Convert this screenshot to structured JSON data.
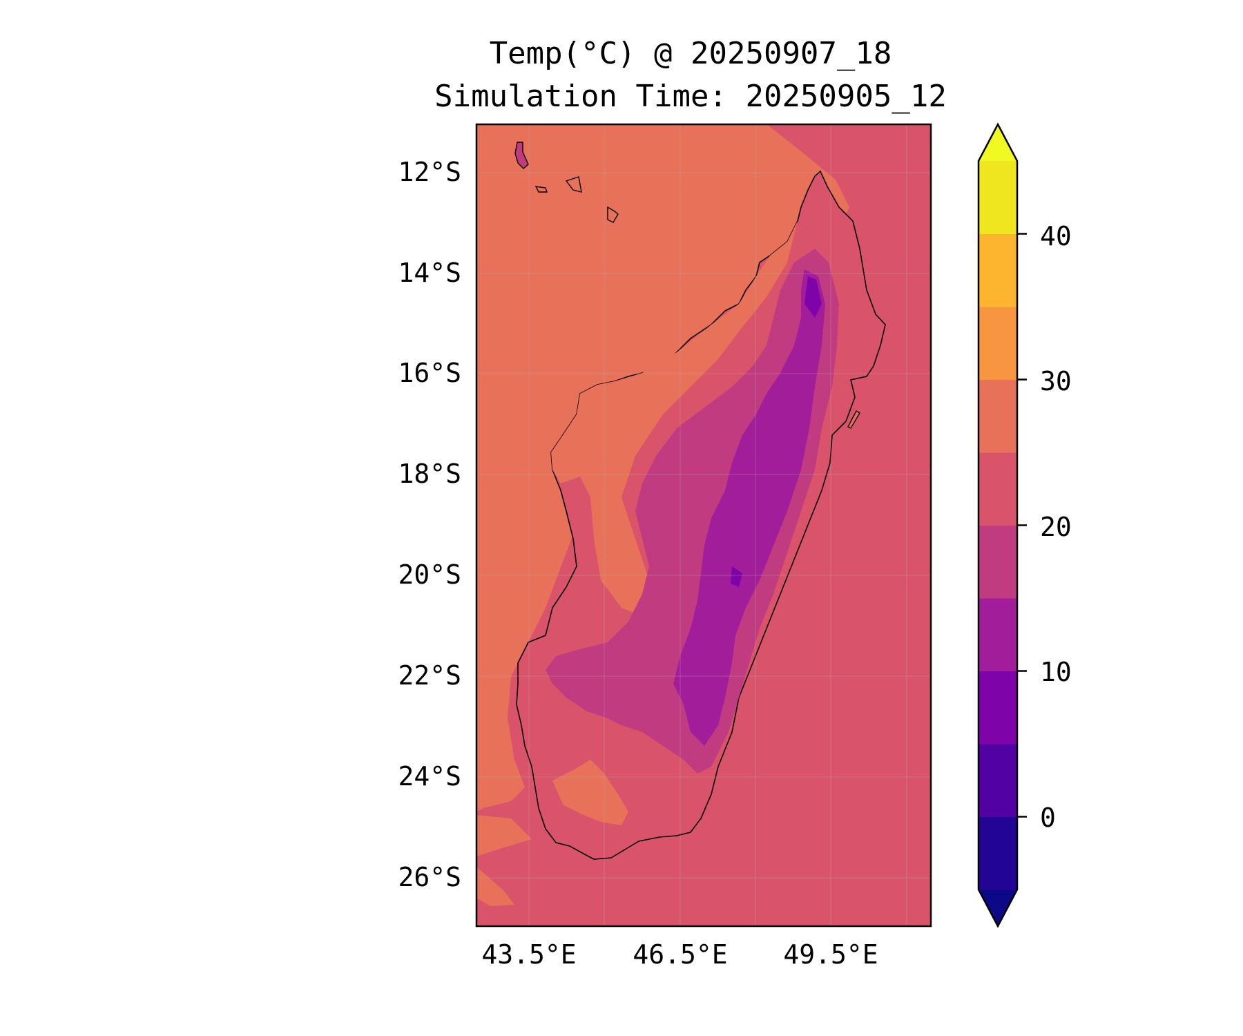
{
  "title": {
    "line1": "Temp(°C) @ 20250907_18",
    "line2": "Simulation Time: 20250905_12"
  },
  "map": {
    "region": "Madagascar",
    "lon_range": [
      42.5,
      51.5
    ],
    "lat_range": [
      -27,
      -11
    ],
    "x_ticks": [
      "43.5°E",
      "46.5°E",
      "49.5°E"
    ],
    "y_ticks": [
      "12°S",
      "14°S",
      "16°S",
      "18°S",
      "20°S",
      "22°S",
      "24°S",
      "26°S"
    ],
    "gridlines": true,
    "ocean_color": "#d9546a",
    "warm_sea_color": "#e8715a"
  },
  "colorbar": {
    "ticks": [
      "0",
      "10",
      "20",
      "30",
      "40"
    ],
    "extend": "both",
    "levels": [
      -5,
      0,
      5,
      10,
      15,
      20,
      25,
      30,
      35,
      40,
      45
    ],
    "colors": [
      "#0d0887",
      "#220595",
      "#5201a3",
      "#7e03a8",
      "#a21d9a",
      "#c03b80",
      "#d9546a",
      "#e8715a",
      "#f89540",
      "#fdb42f",
      "#f0e61f",
      "#f0f921"
    ]
  }
}
